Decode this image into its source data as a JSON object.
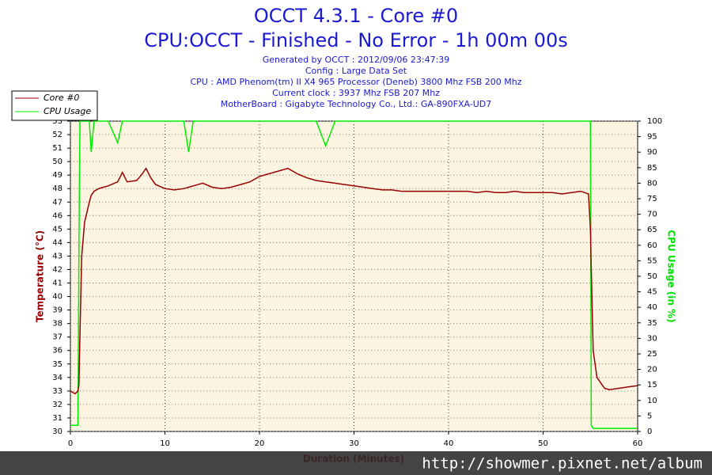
{
  "chart_data": {
    "type": "line",
    "title": "OCCT 4.3.1 - Core #0",
    "subtitle": "CPU:OCCT - Finished - No Error - 1h 00m 00s",
    "info_lines": [
      "Generated by OCCT : 2012/09/06 23:47:39",
      "Config : Large Data Set",
      "CPU : AMD Phenom(tm) II X4 965 Processor (Deneb) 3800 Mhz FSB 200 Mhz",
      "Current clock : 3937 Mhz FSB 207 Mhz",
      "MotherBoard : Gigabyte Technology Co., Ltd.: GA-890FXA-UD7"
    ],
    "xlabel": "Duration (Minutes)",
    "ylabel": "Temperature (°C)",
    "y2label": "CPU Usage (in %)",
    "watermark": "http://showmer.pixnet.net/album",
    "x": [
      0,
      0.5,
      0.8,
      0.9,
      1,
      1.2,
      1.5,
      2,
      2.2,
      2.5,
      3,
      4,
      5,
      5.5,
      6,
      7,
      7.5,
      8,
      8.5,
      9,
      10,
      11,
      12,
      12.5,
      13,
      14,
      15,
      16,
      17,
      18,
      19,
      20,
      21,
      22,
      23,
      24,
      25,
      26,
      27,
      28,
      29,
      30,
      31,
      32,
      33,
      34,
      35,
      36,
      37,
      38,
      39,
      40,
      41,
      42,
      43,
      44,
      45,
      46,
      47,
      48,
      49,
      50,
      51,
      52,
      53,
      54,
      54.8,
      55,
      55.1,
      55.3,
      55.7,
      56.5,
      57,
      58,
      59,
      60
    ],
    "series": [
      {
        "name": "Core #0",
        "color": "#990000",
        "axis": "y",
        "values": [
          33,
          32.8,
          33,
          33.5,
          37,
          43,
          45.5,
          47,
          47.5,
          47.8,
          48,
          48.2,
          48.5,
          49.2,
          48.5,
          48.6,
          49,
          49.5,
          48.8,
          48.3,
          48,
          47.9,
          48,
          48.1,
          48.2,
          48.4,
          48.1,
          48,
          48.1,
          48.3,
          48.5,
          48.9,
          49.1,
          49.3,
          49.5,
          49.1,
          48.8,
          48.6,
          48.5,
          48.4,
          48.3,
          48.2,
          48.1,
          48,
          47.9,
          47.9,
          47.8,
          47.8,
          47.8,
          47.8,
          47.8,
          47.8,
          47.8,
          47.8,
          47.7,
          47.8,
          47.7,
          47.7,
          47.8,
          47.7,
          47.7,
          47.7,
          47.7,
          47.6,
          47.7,
          47.8,
          47.6,
          45,
          42,
          36,
          34,
          33.2,
          33.1,
          33.2,
          33.3,
          33.4
        ]
      },
      {
        "name": "CPU Usage",
        "color": "#00ee00",
        "axis": "y2",
        "values": [
          2,
          2,
          2,
          60,
          100,
          100,
          100,
          100,
          90,
          100,
          100,
          100,
          93,
          100,
          100,
          100,
          100,
          100,
          100,
          100,
          100,
          100,
          100,
          90,
          100,
          100,
          100,
          100,
          100,
          100,
          100,
          100,
          100,
          100,
          100,
          100,
          100,
          100,
          92,
          100,
          100,
          100,
          100,
          100,
          100,
          100,
          100,
          100,
          100,
          100,
          100,
          100,
          100,
          100,
          100,
          100,
          100,
          100,
          100,
          100,
          100,
          100,
          100,
          100,
          100,
          100,
          100,
          100,
          2,
          1,
          1,
          1,
          1,
          1,
          1,
          1
        ]
      }
    ],
    "xlim": [
      0,
      60
    ],
    "xticks": [
      0,
      10,
      20,
      30,
      40,
      50,
      60
    ],
    "ylim": [
      30,
      53
    ],
    "yticks": [
      30,
      31,
      32,
      33,
      34,
      35,
      36,
      37,
      38,
      39,
      40,
      41,
      42,
      43,
      44,
      45,
      46,
      47,
      48,
      49,
      50,
      51,
      52,
      53
    ],
    "y2lim": [
      0,
      100
    ],
    "y2ticks": [
      0,
      5,
      10,
      15,
      20,
      25,
      30,
      35,
      40,
      45,
      50,
      55,
      60,
      65,
      70,
      75,
      80,
      85,
      90,
      95,
      100
    ],
    "grid": true,
    "legend": "top-left"
  }
}
